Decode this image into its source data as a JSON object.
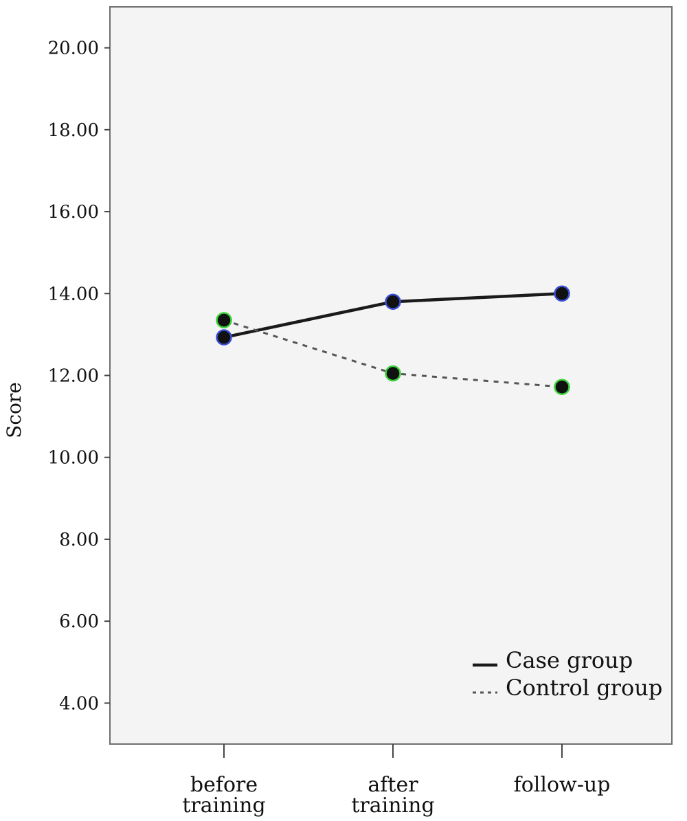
{
  "chart_data": {
    "type": "line",
    "title": "",
    "xlabel": "",
    "ylabel": "Score",
    "ylim": [
      3.0,
      21.0
    ],
    "yticks": [
      "4.00",
      "6.00",
      "8.00",
      "10.00",
      "12.00",
      "14.00",
      "16.00",
      "18.00",
      "20.00"
    ],
    "categories": [
      [
        "before",
        "training"
      ],
      [
        "after",
        "training"
      ],
      [
        "follow-up"
      ]
    ],
    "series": [
      {
        "name": "Case group",
        "values": [
          12.93,
          13.8,
          14.0
        ],
        "line_style": "solid",
        "marker_ring_color": "#3a4fd8"
      },
      {
        "name": "Control group",
        "values": [
          13.35,
          12.05,
          11.72
        ],
        "line_style": "dashed",
        "marker_ring_color": "#3bd13b"
      }
    ],
    "legend_position": "bottom-right",
    "grid": false,
    "colors": {
      "plot_background": "#f3f4f3",
      "frame": "#6e6e6e",
      "line": "#1a1a1a",
      "marker_fill": "#111111"
    }
  }
}
